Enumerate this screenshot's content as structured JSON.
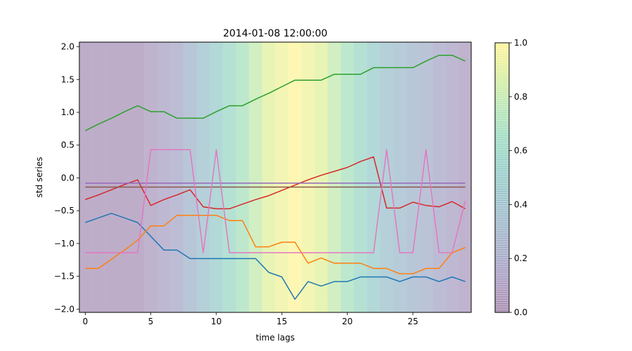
{
  "chart_data": {
    "type": "line",
    "title": "2014-01-08 12:00:00",
    "xlabel": "time lags",
    "ylabel": "std series",
    "xlim": [
      -0.45,
      29.45
    ],
    "ylim": [
      -2.05,
      2.07
    ],
    "xticks": [
      0,
      5,
      10,
      15,
      20,
      25
    ],
    "yticks": [
      -2.0,
      -1.5,
      -1.0,
      -0.5,
      0.0,
      0.5,
      1.0,
      1.5,
      2.0
    ],
    "x": [
      0,
      1,
      2,
      3,
      4,
      5,
      6,
      7,
      8,
      9,
      10,
      11,
      12,
      13,
      14,
      15,
      16,
      17,
      18,
      19,
      20,
      21,
      22,
      23,
      24,
      25,
      26,
      27,
      28,
      29
    ],
    "background_weights": [
      0.05,
      0.05,
      0.05,
      0.05,
      0.05,
      0.1,
      0.15,
      0.2,
      0.3,
      0.4,
      0.5,
      0.6,
      0.7,
      0.8,
      0.9,
      0.95,
      1.0,
      0.95,
      0.9,
      0.8,
      0.7,
      0.6,
      0.5,
      0.4,
      0.35,
      0.3,
      0.25,
      0.2,
      0.15,
      0.1
    ],
    "series": [
      {
        "color": "#1f77b4",
        "values": [
          -0.68,
          -0.61,
          -0.54,
          -0.61,
          -0.68,
          -0.89,
          -1.1,
          -1.1,
          -1.23,
          -1.23,
          -1.23,
          -1.23,
          -1.23,
          -1.23,
          -1.44,
          -1.51,
          -1.85,
          -1.58,
          -1.65,
          -1.58,
          -1.58,
          -1.51,
          -1.51,
          -1.51,
          -1.58,
          -1.51,
          -1.51,
          -1.58,
          -1.51,
          -1.58
        ]
      },
      {
        "color": "#ff7f0e",
        "values": [
          -1.38,
          -1.38,
          -1.24,
          -1.1,
          -0.95,
          -0.73,
          -0.73,
          -0.57,
          -0.57,
          -0.57,
          -0.57,
          -0.65,
          -0.65,
          -1.05,
          -1.05,
          -0.98,
          -0.98,
          -1.3,
          -1.22,
          -1.3,
          -1.3,
          -1.3,
          -1.38,
          -1.38,
          -1.46,
          -1.46,
          -1.38,
          -1.38,
          -1.14,
          -1.06
        ]
      },
      {
        "color": "#2ca02c",
        "values": [
          0.72,
          0.82,
          0.91,
          1.01,
          1.1,
          1.01,
          1.01,
          0.91,
          0.91,
          0.91,
          1.01,
          1.1,
          1.1,
          1.2,
          1.29,
          1.39,
          1.49,
          1.49,
          1.49,
          1.58,
          1.58,
          1.58,
          1.68,
          1.68,
          1.68,
          1.68,
          1.78,
          1.87,
          1.87,
          1.78
        ]
      },
      {
        "color": "#d62728",
        "values": [
          -0.33,
          -0.26,
          -0.18,
          -0.1,
          -0.03,
          -0.42,
          -0.33,
          -0.26,
          -0.18,
          -0.44,
          -0.47,
          -0.47,
          -0.4,
          -0.33,
          -0.27,
          -0.19,
          -0.11,
          -0.03,
          0.04,
          0.1,
          0.16,
          0.25,
          0.32,
          -0.46,
          -0.46,
          -0.37,
          -0.42,
          -0.44,
          -0.36,
          -0.47
        ]
      },
      {
        "color": "#9467bd",
        "values": [
          -0.08,
          -0.08,
          -0.08,
          -0.08,
          -0.08,
          -0.08,
          -0.08,
          -0.08,
          -0.08,
          -0.08,
          -0.08,
          -0.08,
          -0.08,
          -0.08,
          -0.08,
          -0.08,
          -0.08,
          -0.08,
          -0.08,
          -0.08,
          -0.08,
          -0.08,
          -0.08,
          -0.08,
          -0.08,
          -0.08,
          -0.08,
          -0.08,
          -0.08,
          -0.08
        ]
      },
      {
        "color": "#8c564b",
        "values": [
          -0.14,
          -0.14,
          -0.14,
          -0.14,
          -0.14,
          -0.14,
          -0.14,
          -0.14,
          -0.14,
          -0.14,
          -0.14,
          -0.14,
          -0.14,
          -0.14,
          -0.14,
          -0.14,
          -0.14,
          -0.14,
          -0.14,
          -0.14,
          -0.14,
          -0.14,
          -0.14,
          -0.14,
          -0.14,
          -0.14,
          -0.14,
          -0.14,
          -0.14,
          -0.14
        ]
      },
      {
        "color": "#e377c2",
        "values": [
          -1.14,
          -1.14,
          -1.14,
          -1.14,
          -1.14,
          0.43,
          0.43,
          0.43,
          0.43,
          -1.14,
          0.43,
          -1.14,
          -1.14,
          -1.14,
          -1.14,
          -1.14,
          -1.14,
          -1.14,
          -1.14,
          -1.14,
          -1.14,
          -1.14,
          -1.14,
          0.43,
          -1.14,
          -1.14,
          0.43,
          -1.14,
          -1.14,
          -0.35
        ]
      }
    ],
    "colorbar": {
      "colormap": "viridis",
      "alpha": 0.35,
      "range": [
        0.0,
        1.0
      ],
      "ticks": [
        "0.0",
        "0.2",
        "0.4",
        "0.6",
        "0.8",
        "1.0"
      ]
    }
  }
}
